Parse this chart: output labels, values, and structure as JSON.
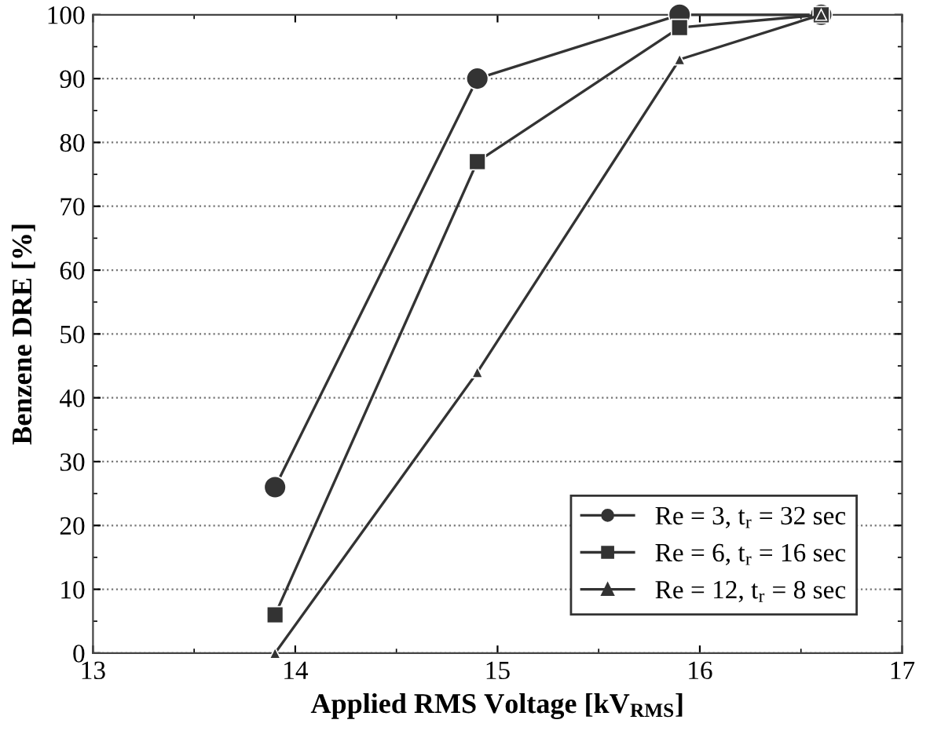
{
  "chart_data": {
    "type": "line",
    "xlabel": "Applied RMS Voltage [kV$_{RMS}$]",
    "ylabel": "Benzene DRE [%]",
    "xlim": [
      13,
      17
    ],
    "xticks": [
      13,
      14,
      15,
      16,
      17
    ],
    "ylim": [
      0,
      100
    ],
    "yticks": [
      0,
      10,
      20,
      30,
      40,
      50,
      60,
      70,
      80,
      90,
      100
    ],
    "grid": "y",
    "legend": "bottom right",
    "series": [
      {
        "name": "Re = 3, t$_{r}$ = 32 sec",
        "color": "#333333",
        "marker": "circle",
        "x": [
          13.9,
          14.9,
          15.9,
          16.6
        ],
        "values": [
          26,
          90,
          100,
          100
        ]
      },
      {
        "name": "Re = 6, t$_{r}$ = 16 sec",
        "color": "#333333",
        "marker": "square",
        "x": [
          13.9,
          14.9,
          15.9,
          16.6
        ],
        "values": [
          6,
          77,
          98,
          100
        ]
      },
      {
        "name": "Re = 12, t$_{r}$ = 8 sec",
        "color": "#333333",
        "marker": "triangle",
        "x": [
          13.9,
          14.9,
          15.9,
          16.6
        ],
        "values": [
          0,
          44,
          93,
          100
        ]
      }
    ]
  }
}
